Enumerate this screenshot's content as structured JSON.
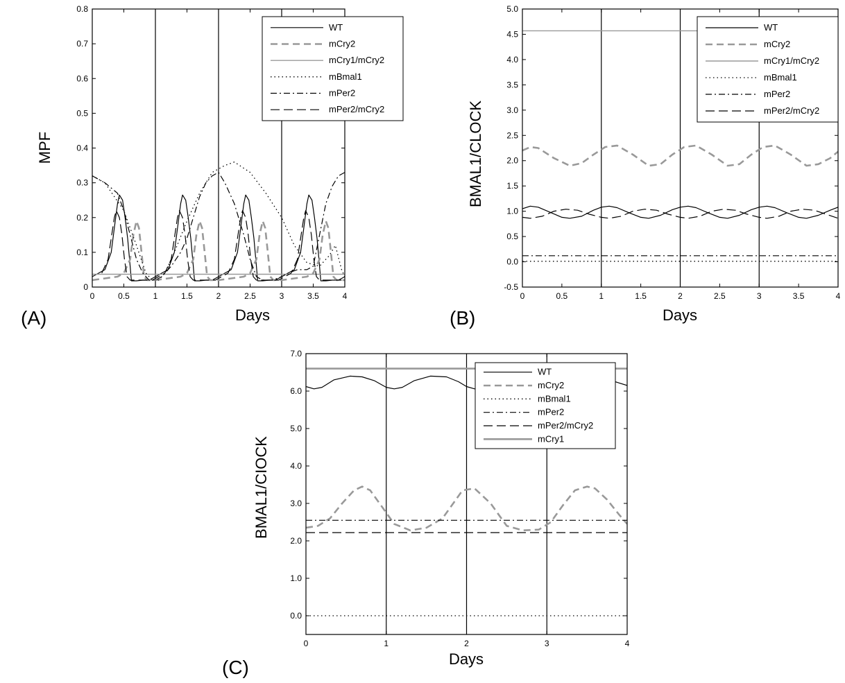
{
  "chart_data": [
    {
      "panel_label": "(A)",
      "type": "line",
      "xlabel": "Days",
      "ylabel": "MPF",
      "xlim": [
        0,
        4
      ],
      "ylim": [
        0,
        0.8
      ],
      "xticks": [
        0,
        0.5,
        1,
        1.5,
        2,
        2.5,
        3,
        3.5,
        4
      ],
      "xtick_labels": [
        "0",
        "0.5",
        "1",
        "1.5",
        "2",
        "2.5",
        "3",
        "3.5",
        "4"
      ],
      "yticks": [
        0,
        0.1,
        0.2,
        0.3,
        0.4,
        0.5,
        0.6,
        0.7,
        0.8
      ],
      "ytick_labels": [
        "0",
        "0.1",
        "0.2",
        "0.3",
        "0.4",
        "0.5",
        "0.6",
        "0.7",
        "0.8"
      ],
      "vlines": [
        1,
        2,
        3
      ],
      "grid": false,
      "legend_position": "top-right",
      "series": [
        {
          "name": "WT",
          "style": "solid",
          "color": "#000000",
          "x": [
            0,
            0.2,
            0.3,
            0.35,
            0.4,
            0.43,
            0.48,
            0.52,
            0.56,
            0.6,
            0.62,
            0.7,
            0.8,
            0.9,
            1.0
          ],
          "y": [
            0.03,
            0.05,
            0.1,
            0.17,
            0.24,
            0.265,
            0.25,
            0.2,
            0.14,
            0.06,
            0.018,
            0.018,
            0.02,
            0.02,
            0.03
          ],
          "period": 1
        },
        {
          "name": "mCry2",
          "style": "dashed",
          "color": "#999999",
          "x": [
            0,
            0.2,
            0.4,
            0.5,
            0.6,
            0.65,
            0.7,
            0.74,
            0.78,
            0.82,
            0.87,
            1.0
          ],
          "y": [
            0.02,
            0.025,
            0.03,
            0.04,
            0.08,
            0.15,
            0.19,
            0.17,
            0.1,
            0.03,
            0.02,
            0.02
          ],
          "period": 1
        },
        {
          "name": "mCry1/mCry2",
          "style": "solid-thin",
          "color": "#999999",
          "x": [
            0,
            4
          ],
          "y": [
            0.037,
            0.037
          ]
        },
        {
          "name": "mBmal1",
          "style": "dotted",
          "color": "#000000",
          "x": [
            0,
            0.2,
            0.5,
            0.7,
            0.85,
            0.95,
            1.05,
            1.15,
            1.3,
            1.5,
            1.7,
            1.9,
            2.1,
            2.25,
            2.5,
            2.75,
            3.0,
            3.2,
            3.4,
            3.6,
            3.75,
            3.85,
            3.95,
            4.0
          ],
          "y": [
            0.32,
            0.3,
            0.22,
            0.12,
            0.04,
            0.02,
            0.02,
            0.04,
            0.1,
            0.19,
            0.27,
            0.33,
            0.35,
            0.36,
            0.33,
            0.27,
            0.2,
            0.12,
            0.07,
            0.06,
            0.09,
            0.12,
            0.05,
            0.03
          ]
        },
        {
          "name": "mPer2",
          "style": "dashdot",
          "color": "#000000",
          "x": [
            0,
            0.2,
            0.4,
            0.5,
            0.6,
            0.7,
            0.8,
            0.9,
            1.0,
            1.1,
            1.25,
            1.4,
            1.5,
            1.6,
            1.7,
            1.8,
            1.9,
            2.0,
            2.1,
            2.25,
            2.4,
            2.5,
            2.6,
            2.7,
            2.85,
            3.0,
            3.1,
            3.25,
            3.4,
            3.5,
            3.6,
            3.7,
            3.8,
            3.9,
            4.0
          ],
          "y": [
            0.32,
            0.3,
            0.27,
            0.22,
            0.15,
            0.08,
            0.04,
            0.02,
            0.02,
            0.03,
            0.06,
            0.1,
            0.14,
            0.2,
            0.26,
            0.3,
            0.32,
            0.33,
            0.3,
            0.24,
            0.15,
            0.08,
            0.03,
            0.02,
            0.02,
            0.03,
            0.04,
            0.05,
            0.05,
            0.06,
            0.15,
            0.24,
            0.29,
            0.32,
            0.33
          ]
        },
        {
          "name": "mPer2/mCry2",
          "style": "longdash",
          "color": "#000000",
          "x": [
            0,
            0.2,
            0.3,
            0.35,
            0.4,
            0.43,
            0.48,
            0.52,
            0.56,
            0.6,
            0.65,
            0.75,
            0.85,
            1.0
          ],
          "y": [
            0.02,
            0.04,
            0.08,
            0.14,
            0.2,
            0.22,
            0.2,
            0.15,
            0.08,
            0.03,
            0.02,
            0.02,
            0.02,
            0.02
          ],
          "shift": -0.05,
          "period": 1
        }
      ]
    },
    {
      "panel_label": "(B)",
      "type": "line",
      "xlabel": "Days",
      "ylabel": "BMAL1/CLOCK",
      "xlim": [
        0,
        4
      ],
      "ylim": [
        -0.5,
        5.0
      ],
      "xticks": [
        0,
        0.5,
        1,
        1.5,
        2,
        2.5,
        3,
        3.5,
        4
      ],
      "xtick_labels": [
        "0",
        "0.5",
        "1",
        "1.5",
        "2",
        "2.5",
        "3",
        "3.5",
        "4"
      ],
      "yticks": [
        -0.5,
        0,
        0.5,
        1.0,
        1.5,
        2.0,
        2.5,
        3.0,
        3.5,
        4.0,
        4.5,
        5.0
      ],
      "ytick_labels": [
        "-0.5",
        "0.0",
        "0.5",
        "1.0",
        "1.5",
        "2.0",
        "2.5",
        "3.0",
        "3.5",
        "4.0",
        "4.5",
        "5.0"
      ],
      "vlines": [
        1,
        2,
        3
      ],
      "grid": false,
      "legend_position": "top-right",
      "series": [
        {
          "name": "WT",
          "style": "solid",
          "color": "#000000",
          "x": [
            0,
            0.1,
            0.2,
            0.35,
            0.5,
            0.6,
            0.75,
            0.9,
            1.0,
            1.1,
            1.2,
            1.35,
            1.5,
            1.6,
            1.75,
            1.9,
            2.0,
            2.1,
            2.2,
            2.35,
            2.5,
            2.6,
            2.75,
            2.9,
            3.0,
            3.1,
            3.2,
            3.35,
            3.5,
            3.6,
            3.75,
            3.9,
            4.0
          ],
          "y": [
            1.05,
            1.1,
            1.08,
            0.98,
            0.88,
            0.86,
            0.9,
            1.02,
            1.08,
            1.1,
            1.07,
            0.97,
            0.88,
            0.86,
            0.92,
            1.03,
            1.08,
            1.1,
            1.07,
            0.97,
            0.88,
            0.86,
            0.92,
            1.03,
            1.08,
            1.1,
            1.07,
            0.97,
            0.88,
            0.86,
            0.92,
            1.02,
            1.08
          ]
        },
        {
          "name": "mCry2",
          "style": "dashed",
          "color": "#999999",
          "x": [
            0,
            0.1,
            0.2,
            0.4,
            0.6,
            0.75,
            0.9,
            1.05,
            1.2,
            1.4,
            1.6,
            1.75,
            1.9,
            2.05,
            2.2,
            2.4,
            2.6,
            2.75,
            2.9,
            3.05,
            3.2,
            3.4,
            3.6,
            3.75,
            3.9,
            4.0
          ],
          "y": [
            2.2,
            2.27,
            2.25,
            2.05,
            1.9,
            1.95,
            2.12,
            2.27,
            2.3,
            2.12,
            1.9,
            1.93,
            2.12,
            2.27,
            2.3,
            2.12,
            1.9,
            1.93,
            2.12,
            2.27,
            2.3,
            2.12,
            1.9,
            1.93,
            2.05,
            2.18
          ]
        },
        {
          "name": "mCry1/mCry2",
          "style": "solid-thin",
          "color": "#999999",
          "x": [
            0,
            4
          ],
          "y": [
            4.57,
            4.57
          ]
        },
        {
          "name": "mBmal1",
          "style": "dotted",
          "color": "#000000",
          "x": [
            0,
            4
          ],
          "y": [
            0.01,
            0.01
          ]
        },
        {
          "name": "mPer2",
          "style": "dashdot",
          "color": "#000000",
          "x": [
            0,
            4
          ],
          "y": [
            0.12,
            0.12
          ]
        },
        {
          "name": "mPer2/mCry2",
          "style": "longdash",
          "color": "#000000",
          "x": [
            0,
            0.1,
            0.25,
            0.4,
            0.55,
            0.7,
            0.85,
            1.0,
            1.1,
            1.25,
            1.4,
            1.55,
            1.7,
            1.85,
            2.0,
            2.1,
            2.25,
            2.4,
            2.55,
            2.7,
            2.85,
            3.0,
            3.1,
            3.25,
            3.4,
            3.55,
            3.7,
            3.85,
            4.0
          ],
          "y": [
            0.88,
            0.86,
            0.9,
            1.0,
            1.04,
            1.02,
            0.94,
            0.88,
            0.86,
            0.9,
            1.0,
            1.04,
            1.02,
            0.94,
            0.88,
            0.86,
            0.9,
            1.0,
            1.04,
            1.02,
            0.94,
            0.88,
            0.86,
            0.9,
            1.0,
            1.04,
            1.02,
            0.94,
            0.86
          ]
        }
      ]
    },
    {
      "panel_label": "(C)",
      "type": "line",
      "xlabel": "Days",
      "ylabel": "BMAL1/CIOCK",
      "xlim": [
        0,
        4
      ],
      "ylim": [
        -0.5,
        7.0
      ],
      "xticks": [
        0,
        1,
        2,
        3,
        4
      ],
      "xtick_labels": [
        "0",
        "1",
        "2",
        "3",
        "4"
      ],
      "yticks": [
        0,
        1.0,
        2.0,
        3.0,
        4.0,
        5.0,
        6.0,
        7.0
      ],
      "ytick_labels": [
        "0.0",
        "1.0",
        "2.0",
        "3.0",
        "4.0",
        "5.0",
        "6.0",
        "7.0"
      ],
      "vlines": [
        1,
        2,
        3
      ],
      "grid": false,
      "legend_position": "top-right",
      "series": [
        {
          "name": "WT",
          "style": "solid",
          "color": "#000000",
          "x": [
            0,
            0.1,
            0.2,
            0.35,
            0.55,
            0.7,
            0.85,
            1.0,
            1.1,
            1.2,
            1.35,
            1.55,
            1.75,
            1.9,
            2.0,
            2.1,
            2.2,
            3.4,
            3.55,
            3.7,
            3.85,
            4.0
          ],
          "y": [
            6.12,
            6.06,
            6.1,
            6.3,
            6.4,
            6.38,
            6.28,
            6.1,
            6.06,
            6.1,
            6.28,
            6.4,
            6.38,
            6.25,
            6.12,
            6.06,
            6.1,
            6.35,
            6.4,
            6.35,
            6.25,
            6.15
          ]
        },
        {
          "name": "mCry2",
          "style": "dashed",
          "color": "#999999",
          "x": [
            0,
            0.15,
            0.3,
            0.45,
            0.6,
            0.7,
            0.8,
            0.95,
            1.1,
            1.3,
            1.5,
            1.7,
            1.8,
            1.95,
            2.1,
            2.3,
            2.5,
            2.7,
            2.9,
            3.05,
            3.2,
            3.35,
            3.5,
            3.6,
            3.75,
            3.9,
            4.0
          ],
          "y": [
            2.35,
            2.4,
            2.6,
            3.0,
            3.35,
            3.45,
            3.35,
            2.9,
            2.45,
            2.28,
            2.35,
            2.6,
            2.9,
            3.35,
            3.4,
            3.0,
            2.4,
            2.28,
            2.3,
            2.5,
            2.95,
            3.35,
            3.45,
            3.4,
            3.1,
            2.7,
            2.45
          ]
        },
        {
          "name": "mBmal1",
          "style": "dotted",
          "color": "#000000",
          "x": [
            0,
            4
          ],
          "y": [
            0.0,
            0.0
          ]
        },
        {
          "name": "mPer2",
          "style": "dashdot",
          "color": "#000000",
          "x": [
            0,
            4
          ],
          "y": [
            2.55,
            2.55
          ]
        },
        {
          "name": "mPer2/mCry2",
          "style": "longdash",
          "color": "#000000",
          "x": [
            0,
            4
          ],
          "y": [
            2.22,
            2.22
          ]
        },
        {
          "name": "mCry1",
          "style": "solid-thick",
          "color": "#999999",
          "x": [
            0,
            4
          ],
          "y": [
            6.6,
            6.6
          ]
        }
      ]
    }
  ]
}
